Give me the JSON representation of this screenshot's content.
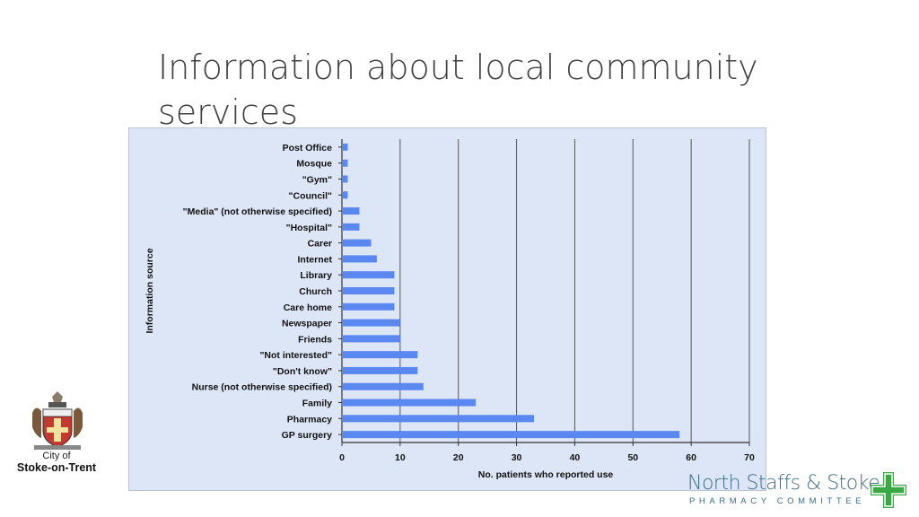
{
  "slide": {
    "title": "Information about local community services"
  },
  "logos": {
    "left_line1": "City of",
    "left_line2": "Stoke-on-Trent",
    "right_line1": "North Staffs & Stoke",
    "right_line2": "PHARMACY COMMITTEE"
  },
  "colors": {
    "bar": "#5b87f0",
    "chart_background": "#dce6f7",
    "gridline": "#555555",
    "cross_green": "#3aa844"
  },
  "chart_data": {
    "type": "bar",
    "orientation": "horizontal",
    "categories": [
      "Post Office",
      "Mosque",
      "\"Gym\"",
      "\"Council\"",
      "\"Media\" (not otherwise specified)",
      "\"Hospital\"",
      "Carer",
      "Internet",
      "Library",
      "Church",
      "Care home",
      "Newspaper",
      "Friends",
      "\"Not interested\"",
      "\"Don't know\"",
      "Nurse (not otherwise specified)",
      "Family",
      "Pharmacy",
      "GP surgery"
    ],
    "values": [
      1,
      1,
      1,
      1,
      3,
      3,
      5,
      6,
      9,
      9,
      9,
      10,
      10,
      13,
      13,
      14,
      23,
      33,
      58
    ],
    "xlabel": "No. patients who reported use",
    "ylabel": "Information source",
    "xlim": [
      0,
      70
    ],
    "xticks": [
      0,
      10,
      20,
      30,
      40,
      50,
      60,
      70
    ],
    "grid": true
  }
}
